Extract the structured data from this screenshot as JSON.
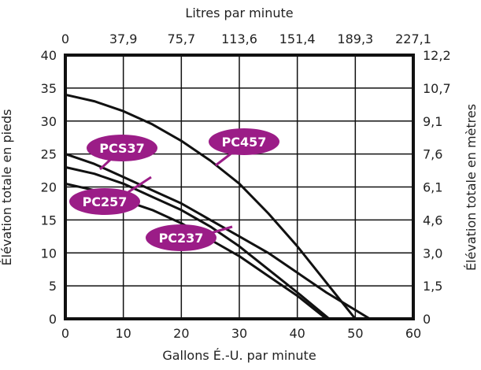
{
  "colors": {
    "curve": "#111111",
    "badge": "#9b1d87",
    "badge_text": "#ffffff",
    "axis": "#111111"
  },
  "chart_data": {
    "type": "line",
    "xlabel": "Gallons É.-U. par minute",
    "x_top_label": "Litres par minute",
    "ylabel": "Élévation totale en pieds",
    "y_right_label": "Élévation totale en mètres",
    "xlim": [
      0,
      60
    ],
    "ylim": [
      0,
      40
    ],
    "x_ticks": [
      "0",
      "10",
      "20",
      "30",
      "40",
      "50",
      "60"
    ],
    "x_top_ticks": [
      "0",
      "37,9",
      "75,7",
      "113,6",
      "151,4",
      "189,3",
      "227,1"
    ],
    "y_ticks": [
      "0",
      "5",
      "10",
      "15",
      "20",
      "25",
      "30",
      "35",
      "40"
    ],
    "y_right_ticks": [
      "0",
      "1,5",
      "3,0",
      "4,6",
      "6,1",
      "7,6",
      "9,1",
      "10,7",
      "12,2"
    ],
    "grid": true,
    "series": [
      {
        "name": "PC457",
        "x": [
          0,
          5,
          10,
          15,
          20,
          25,
          30,
          35,
          40,
          45,
          50
        ],
        "y": [
          34,
          33,
          31.5,
          29.5,
          27,
          24,
          20.5,
          16,
          11,
          5.5,
          0
        ]
      },
      {
        "name": "PCS37",
        "x": [
          0,
          5,
          10,
          15,
          20,
          25,
          30,
          35,
          40,
          45,
          52.5
        ],
        "y": [
          25,
          23.5,
          21.5,
          19.5,
          17.5,
          15,
          12.5,
          10,
          7,
          4,
          0
        ]
      },
      {
        "name": "PC257",
        "x": [
          0,
          5,
          10,
          15,
          20,
          25,
          30,
          35,
          40,
          45.5
        ],
        "y": [
          23,
          22,
          20.5,
          18.5,
          16.5,
          14,
          11,
          7.5,
          4,
          0
        ]
      },
      {
        "name": "PC237",
        "x": [
          0,
          5,
          10,
          15,
          20,
          25,
          30,
          35,
          40,
          45
        ],
        "y": [
          20.5,
          19.5,
          18,
          16.5,
          14.5,
          12,
          9.5,
          6.5,
          3.5,
          0
        ]
      }
    ]
  }
}
